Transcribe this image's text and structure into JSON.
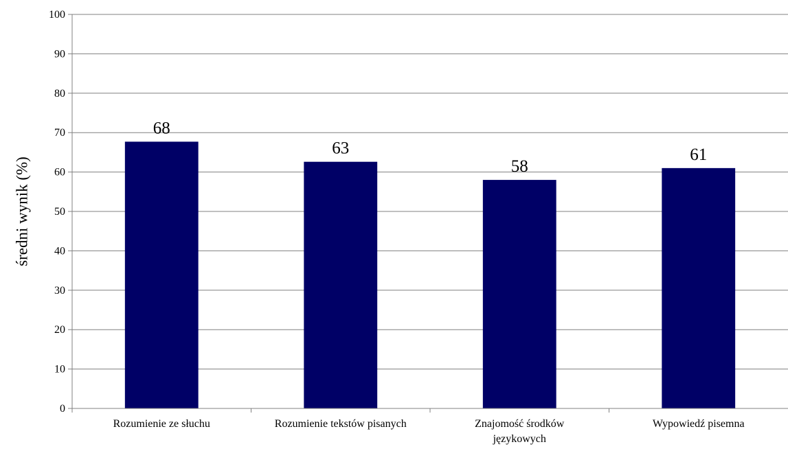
{
  "chart_data": {
    "type": "bar",
    "title": "",
    "xlabel": "",
    "ylabel": "średni wynik (%)",
    "ylim": [
      0,
      100
    ],
    "yticks": [
      0,
      10,
      20,
      30,
      40,
      50,
      60,
      70,
      80,
      90,
      100
    ],
    "grid": true,
    "legend": "none",
    "categories": [
      [
        "Rozumienie ze słuchu"
      ],
      [
        "Rozumienie tekstów pisanych"
      ],
      [
        "Znajomość środków",
        "językowych"
      ],
      [
        "Wypowiedź pisemna"
      ]
    ],
    "values": [
      67.7,
      62.6,
      58.0,
      61.0
    ],
    "data_labels": [
      "68",
      "63",
      "58",
      "61"
    ],
    "colors": {
      "bar": "#000066",
      "grid": "#808080",
      "axis": "#808080"
    }
  }
}
